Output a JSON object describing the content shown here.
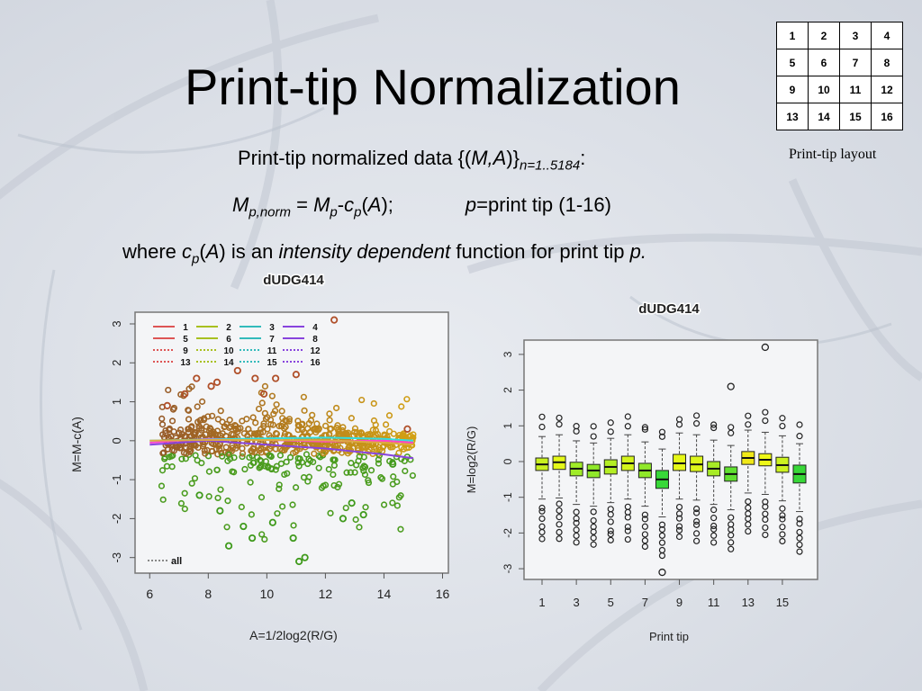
{
  "slide": {
    "title": "Print-tip Normalization",
    "line1": {
      "text": "Print-tip normalized data {(",
      "italic": "M,A",
      "close": ")}",
      "subscript": "n=1..5184",
      "end": ":"
    },
    "line2": {
      "m": "M",
      "m_sub": "p,norm",
      "eq": " = ",
      "m2": "M",
      "m2_sub": "p",
      "minus": "-",
      "c": "c",
      "c_sub": "p",
      "open": "(",
      "a": "A",
      "close": ");",
      "p": "p",
      "rest": "=print tip (1-16)"
    },
    "line3": {
      "where": "where ",
      "c": "c",
      "c_sub": "p",
      "open": "(",
      "a": "A",
      "mid": ") is an ",
      "italic": "intensity dependent",
      "rest": " function for print tip ",
      "p": "p."
    }
  },
  "print_tip_layout": {
    "caption": "Print-tip layout",
    "rows": [
      [
        "1",
        "2",
        "3",
        "4"
      ],
      [
        "5",
        "6",
        "7",
        "8"
      ],
      [
        "9",
        "10",
        "11",
        "12"
      ],
      [
        "13",
        "14",
        "15",
        "16"
      ]
    ]
  },
  "colors": {
    "accent_green": "#22cc22",
    "accent_yellow": "#eeff22",
    "lowess_pink": "#ff44cc",
    "lowess_cyan": "#33dddd",
    "lowess_purple": "#8844dd"
  },
  "chart_data": [
    {
      "type": "scatter",
      "title": "dUDG414",
      "xlabel": "A=1/2log2(R/G)",
      "ylabel": "M=M-c(A)",
      "xlim": [
        5.5,
        16.2
      ],
      "ylim": [
        -3.4,
        3.3
      ],
      "xticks": [
        "6",
        "8",
        "10",
        "12",
        "14",
        "16"
      ],
      "yticks": [
        "3",
        "2",
        "1",
        "0",
        "-1",
        "-2",
        "-3"
      ],
      "legend_position": "top-left",
      "legend_entries": [
        "1",
        "2",
        "3",
        "4",
        "5",
        "6",
        "7",
        "8",
        "9",
        "10",
        "11",
        "12",
        "13",
        "14",
        "15",
        "16"
      ],
      "bottom_legend": "all",
      "outliers": [
        {
          "x": 7.6,
          "y": 1.6
        },
        {
          "x": 8.1,
          "y": 1.4
        },
        {
          "x": 8.3,
          "y": 1.5
        },
        {
          "x": 9.0,
          "y": 1.8
        },
        {
          "x": 9.6,
          "y": 1.6
        },
        {
          "x": 10.3,
          "y": 1.6
        },
        {
          "x": 11.0,
          "y": 1.7
        },
        {
          "x": 12.3,
          "y": 3.1
        },
        {
          "x": 7.2,
          "y": 1.2
        },
        {
          "x": 9.9,
          "y": 1.2
        },
        {
          "x": 8.7,
          "y": -2.7
        },
        {
          "x": 11.3,
          "y": -3.0
        },
        {
          "x": 11.1,
          "y": -3.1
        },
        {
          "x": 10.2,
          "y": -2.1
        },
        {
          "x": 9.2,
          "y": -2.2
        },
        {
          "x": 12.6,
          "y": -2.0
        },
        {
          "x": 13.3,
          "y": -1.9
        },
        {
          "x": 8.4,
          "y": -1.8
        },
        {
          "x": 10.9,
          "y": -2.5
        },
        {
          "x": 7.7,
          "y": -1.4
        },
        {
          "x": 6.6,
          "y": 0.9
        },
        {
          "x": 14.3,
          "y": -0.6
        },
        {
          "x": 14.8,
          "y": 0.3
        },
        {
          "x": 12.9,
          "y": -1.6
        },
        {
          "x": 9.5,
          "y": -2.5
        }
      ],
      "lowess_curves": [
        {
          "name": "5",
          "color": "#ff44cc",
          "x": [
            6,
            8,
            10,
            12,
            14,
            15
          ],
          "y": [
            -0.05,
            0.05,
            0.02,
            -0.02,
            0.0,
            -0.05
          ]
        },
        {
          "name": "6",
          "color": "#33dddd",
          "x": [
            6,
            8,
            10,
            12,
            14,
            15
          ],
          "y": [
            0.0,
            0.03,
            0.06,
            0.08,
            0.05,
            0.0
          ]
        },
        {
          "name": "8",
          "color": "#8844dd",
          "x": [
            6,
            8,
            10,
            12,
            14,
            15
          ],
          "y": [
            -0.1,
            0.0,
            -0.1,
            -0.2,
            -0.35,
            -0.45
          ]
        },
        {
          "name": "12",
          "color": "#ddaa44",
          "x": [
            6,
            8,
            10,
            12,
            14,
            15
          ],
          "y": [
            0.0,
            0.02,
            0.02,
            0.01,
            -0.05,
            -0.1
          ]
        }
      ]
    },
    {
      "type": "box",
      "title": "dUDG414",
      "xlabel": "Print tip",
      "ylabel": "M=log2(R/G)",
      "ylim": [
        -3.3,
        3.4
      ],
      "xticks": [
        "1",
        "3",
        "5",
        "7",
        "9",
        "11",
        "13",
        "15"
      ],
      "yticks": [
        "3",
        "2",
        "1",
        "0",
        "-1",
        "-2",
        "-3"
      ],
      "boxes": [
        {
          "tip": 1,
          "q1": -0.25,
          "median": -0.08,
          "q3": 0.1,
          "color": "#c8f020"
        },
        {
          "tip": 2,
          "q1": -0.22,
          "median": -0.02,
          "q3": 0.15,
          "color": "#e4f818"
        },
        {
          "tip": 3,
          "q1": -0.4,
          "median": -0.2,
          "q3": -0.02,
          "color": "#a0ec28"
        },
        {
          "tip": 4,
          "q1": -0.45,
          "median": -0.25,
          "q3": -0.08,
          "color": "#90e82a"
        },
        {
          "tip": 5,
          "q1": -0.35,
          "median": -0.15,
          "q3": 0.05,
          "color": "#b4ee24"
        },
        {
          "tip": 6,
          "q1": -0.25,
          "median": -0.05,
          "q3": 0.15,
          "color": "#d4f41c"
        },
        {
          "tip": 7,
          "q1": -0.45,
          "median": -0.25,
          "q3": -0.05,
          "color": "#90e82a"
        },
        {
          "tip": 8,
          "q1": -0.75,
          "median": -0.5,
          "q3": -0.25,
          "color": "#38d838"
        },
        {
          "tip": 9,
          "q1": -0.25,
          "median": -0.05,
          "q3": 0.2,
          "color": "#e6f818"
        },
        {
          "tip": 10,
          "q1": -0.28,
          "median": -0.08,
          "q3": 0.15,
          "color": "#dcf61a"
        },
        {
          "tip": 11,
          "q1": -0.4,
          "median": -0.2,
          "q3": 0.0,
          "color": "#a8ec26"
        },
        {
          "tip": 12,
          "q1": -0.55,
          "median": -0.35,
          "q3": -0.15,
          "color": "#60e030"
        },
        {
          "tip": 13,
          "q1": -0.08,
          "median": 0.1,
          "q3": 0.28,
          "color": "#f0e818"
        },
        {
          "tip": 14,
          "q1": -0.12,
          "median": 0.05,
          "q3": 0.22,
          "color": "#eef818"
        },
        {
          "tip": 15,
          "q1": -0.3,
          "median": -0.1,
          "q3": 0.12,
          "color": "#ccf220"
        },
        {
          "tip": 16,
          "q1": -0.6,
          "median": -0.35,
          "q3": -0.1,
          "color": "#38d838"
        }
      ]
    }
  ]
}
